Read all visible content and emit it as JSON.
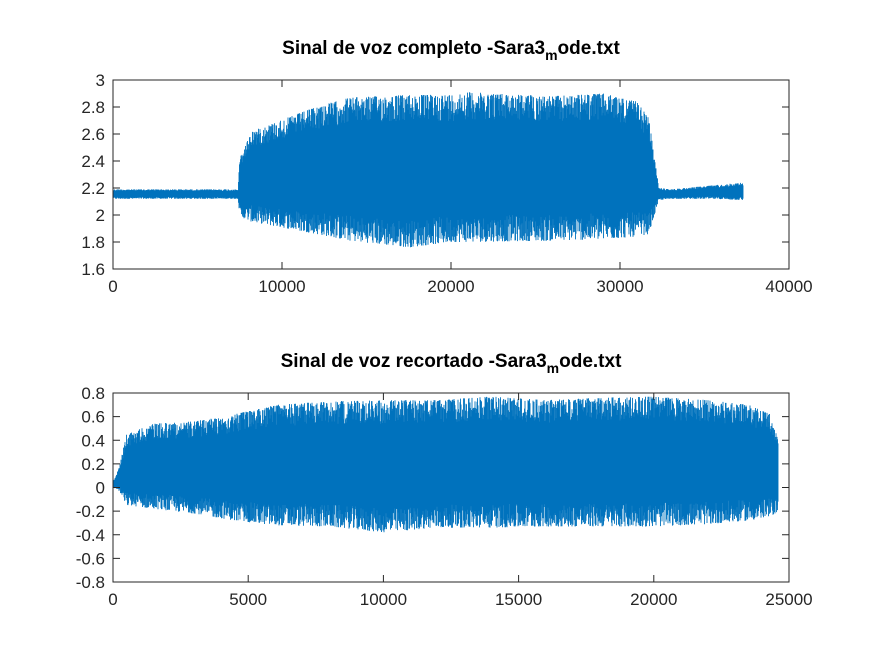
{
  "chart_data": [
    {
      "type": "line",
      "title_main": "Sinal de voz completo -Sara3",
      "title_sub": "m",
      "title_rest": "ode.txt",
      "xlim": [
        0,
        40000
      ],
      "ylim": [
        1.6,
        3.0
      ],
      "xticks": [
        0,
        10000,
        20000,
        30000,
        40000
      ],
      "xtick_labels": [
        "0",
        "10000",
        "20000",
        "30000",
        "40000"
      ],
      "yticks": [
        1.6,
        1.8,
        2.0,
        2.2,
        2.4,
        2.6,
        2.8,
        3.0
      ],
      "ytick_labels": [
        "1.6",
        "1.8",
        "2",
        "2.2",
        "2.4",
        "2.6",
        "2.8",
        "3"
      ],
      "grid": false,
      "series": [
        {
          "color": "#0072BD",
          "n_samples": 37300,
          "envelope": {
            "x": [
              0,
              7400,
              7500,
              8200,
              12000,
              14000,
              17500,
              20000,
              21000,
              26000,
              29000,
              31000,
              31700,
              32300,
              33000,
              35500,
              37300
            ],
            "upper": [
              2.19,
              2.19,
              2.42,
              2.62,
              2.8,
              2.87,
              2.89,
              2.89,
              2.91,
              2.88,
              2.9,
              2.84,
              2.72,
              2.2,
              2.19,
              2.22,
              2.24
            ],
            "lower": [
              2.12,
              2.12,
              1.99,
              1.95,
              1.86,
              1.81,
              1.76,
              1.8,
              1.8,
              1.81,
              1.82,
              1.84,
              1.86,
              2.11,
              2.12,
              2.12,
              2.11
            ]
          }
        }
      ]
    },
    {
      "type": "line",
      "title_main": "Sinal de voz recortado -Sara3",
      "title_sub": "m",
      "title_rest": "ode.txt",
      "xlim": [
        0,
        25000
      ],
      "ylim": [
        -0.8,
        0.8
      ],
      "xticks": [
        0,
        5000,
        10000,
        15000,
        20000,
        25000
      ],
      "xtick_labels": [
        "0",
        "5000",
        "10000",
        "15000",
        "20000",
        "25000"
      ],
      "yticks": [
        -0.8,
        -0.6,
        -0.4,
        -0.2,
        0,
        0.2,
        0.4,
        0.6,
        0.8
      ],
      "ytick_labels": [
        "-0.8",
        "-0.6",
        "-0.4",
        "-0.2",
        "0",
        "0.2",
        "0.4",
        "0.6",
        "0.8"
      ],
      "grid": false,
      "series": [
        {
          "color": "#0072BD",
          "n_samples": 24600,
          "envelope": {
            "x": [
              0,
              200,
              500,
              1500,
              3000,
              4500,
              6000,
              8000,
              10000,
              12000,
              14000,
              16000,
              18000,
              20000,
              22000,
              23500,
              24300,
              24600
            ],
            "upper": [
              0.05,
              0.15,
              0.45,
              0.54,
              0.56,
              0.62,
              0.7,
              0.73,
              0.74,
              0.74,
              0.77,
              0.74,
              0.76,
              0.77,
              0.74,
              0.7,
              0.62,
              0.4
            ],
            "lower": [
              0.0,
              -0.02,
              -0.15,
              -0.18,
              -0.22,
              -0.28,
              -0.32,
              -0.33,
              -0.38,
              -0.34,
              -0.34,
              -0.33,
              -0.33,
              -0.33,
              -0.31,
              -0.28,
              -0.25,
              -0.2
            ]
          }
        }
      ]
    }
  ]
}
